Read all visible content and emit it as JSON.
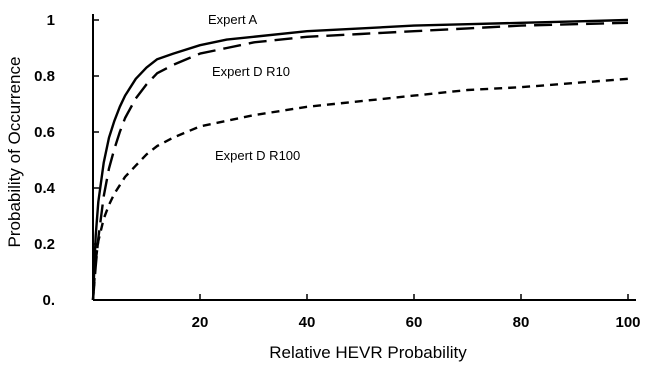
{
  "chart_data": {
    "type": "line",
    "title": "",
    "xlabel": "Relative HEVR Probability",
    "ylabel": "Probability of Occurrence",
    "xlim": [
      0,
      100
    ],
    "ylim": [
      0,
      1
    ],
    "x_ticks": [
      20,
      40,
      60,
      80,
      100
    ],
    "x_tick_labels": [
      "20",
      "40",
      "60",
      "80",
      "100"
    ],
    "y_ticks": [
      0,
      0.2,
      0.4,
      0.6,
      0.8,
      1
    ],
    "y_tick_labels": [
      "0.",
      "0.2",
      "0.4",
      "0.6",
      "0.8",
      "1"
    ],
    "grid": false,
    "legend": "none",
    "series": [
      {
        "name": "Expert A",
        "line_style": "solid",
        "color": "#000000",
        "x": [
          0,
          0.5,
          1,
          2,
          3,
          4,
          5,
          6,
          8,
          10,
          12,
          15,
          20,
          25,
          30,
          40,
          50,
          60,
          70,
          80,
          90,
          100
        ],
        "y": [
          0.0,
          0.23,
          0.35,
          0.49,
          0.58,
          0.64,
          0.69,
          0.73,
          0.79,
          0.83,
          0.86,
          0.88,
          0.91,
          0.93,
          0.94,
          0.96,
          0.97,
          0.98,
          0.985,
          0.99,
          0.995,
          1.0
        ]
      },
      {
        "name": "Expert D R10",
        "line_style": "long-dash",
        "color": "#000000",
        "x": [
          0,
          0.5,
          1,
          2,
          3,
          4,
          5,
          6,
          8,
          10,
          12,
          15,
          20,
          25,
          30,
          40,
          50,
          60,
          70,
          80,
          90,
          100
        ],
        "y": [
          0.0,
          0.12,
          0.22,
          0.37,
          0.47,
          0.54,
          0.6,
          0.65,
          0.72,
          0.77,
          0.81,
          0.84,
          0.88,
          0.9,
          0.92,
          0.94,
          0.95,
          0.96,
          0.97,
          0.98,
          0.985,
          0.99
        ]
      },
      {
        "name": "Expert D R100",
        "line_style": "short-dash",
        "color": "#000000",
        "x": [
          0,
          0.5,
          1,
          2,
          3,
          4,
          5,
          6,
          8,
          10,
          12,
          15,
          20,
          25,
          30,
          40,
          50,
          60,
          70,
          80,
          90,
          100
        ],
        "y": [
          0.0,
          0.14,
          0.21,
          0.29,
          0.34,
          0.38,
          0.41,
          0.44,
          0.48,
          0.52,
          0.55,
          0.58,
          0.62,
          0.64,
          0.66,
          0.69,
          0.71,
          0.73,
          0.75,
          0.76,
          0.775,
          0.79
        ]
      }
    ]
  }
}
